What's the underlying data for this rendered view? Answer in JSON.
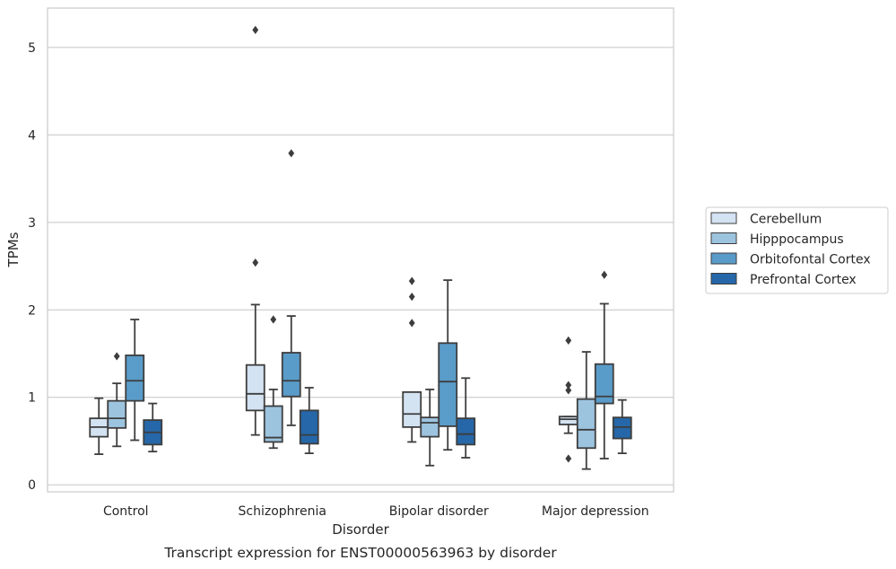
{
  "caption": "Transcript expression for ENST00000563963 by disorder",
  "chart_data": {
    "type": "boxplot",
    "xlabel": "Disorder",
    "ylabel": "TPMs",
    "ylim": [
      -0.08,
      5.45
    ],
    "yticks": [
      0,
      1,
      2,
      3,
      4,
      5
    ],
    "grid": "horizontal",
    "legend_position": "right",
    "categories": [
      "Control",
      "Schizophrenia",
      "Bipolar disorder",
      "Major depression"
    ],
    "series": [
      {
        "name": "Cerebellum",
        "color": "#d4e3f2",
        "boxes": [
          {
            "whislo": 0.35,
            "q1": 0.55,
            "med": 0.66,
            "q3": 0.76,
            "whishi": 0.99,
            "fliers": []
          },
          {
            "whislo": 0.57,
            "q1": 0.85,
            "med": 1.04,
            "q3": 1.37,
            "whishi": 2.06,
            "fliers": [
              2.54,
              5.2
            ]
          },
          {
            "whislo": 0.49,
            "q1": 0.66,
            "med": 0.81,
            "q3": 1.06,
            "whishi": 1.06,
            "fliers": [
              1.85,
              2.15,
              2.33
            ]
          },
          {
            "whislo": 0.59,
            "q1": 0.69,
            "med": 0.75,
            "q3": 0.78,
            "whishi": 0.78,
            "fliers": [
              0.3,
              1.08,
              1.14,
              1.65
            ]
          }
        ]
      },
      {
        "name": "Hipppocampus",
        "color": "#9dc4df",
        "boxes": [
          {
            "whislo": 0.44,
            "q1": 0.65,
            "med": 0.76,
            "q3": 0.96,
            "whishi": 1.16,
            "fliers": [
              1.47
            ]
          },
          {
            "whislo": 0.42,
            "q1": 0.49,
            "med": 0.54,
            "q3": 0.9,
            "whishi": 1.09,
            "fliers": [
              1.89
            ]
          },
          {
            "whislo": 0.22,
            "q1": 0.55,
            "med": 0.71,
            "q3": 0.77,
            "whishi": 1.09,
            "fliers": []
          },
          {
            "whislo": 0.18,
            "q1": 0.42,
            "med": 0.63,
            "q3": 0.98,
            "whishi": 1.52,
            "fliers": []
          }
        ]
      },
      {
        "name": "Orbitofontal Cortex",
        "color": "#5a9cc9",
        "boxes": [
          {
            "whislo": 0.51,
            "q1": 0.96,
            "med": 1.19,
            "q3": 1.48,
            "whishi": 1.89,
            "fliers": []
          },
          {
            "whislo": 0.68,
            "q1": 1.01,
            "med": 1.19,
            "q3": 1.51,
            "whishi": 1.93,
            "fliers": [
              3.79
            ]
          },
          {
            "whislo": 0.4,
            "q1": 0.67,
            "med": 1.18,
            "q3": 1.62,
            "whishi": 2.34,
            "fliers": []
          },
          {
            "whislo": 0.3,
            "q1": 0.93,
            "med": 1.01,
            "q3": 1.38,
            "whishi": 2.07,
            "fliers": [
              2.4
            ]
          }
        ]
      },
      {
        "name": "Prefrontal Cortex",
        "color": "#2567a8",
        "boxes": [
          {
            "whislo": 0.38,
            "q1": 0.46,
            "med": 0.6,
            "q3": 0.74,
            "whishi": 0.93,
            "fliers": []
          },
          {
            "whislo": 0.36,
            "q1": 0.47,
            "med": 0.57,
            "q3": 0.85,
            "whishi": 1.11,
            "fliers": []
          },
          {
            "whislo": 0.31,
            "q1": 0.46,
            "med": 0.58,
            "q3": 0.76,
            "whishi": 1.22,
            "fliers": []
          },
          {
            "whislo": 0.36,
            "q1": 0.53,
            "med": 0.66,
            "q3": 0.77,
            "whishi": 0.97,
            "fliers": []
          }
        ]
      }
    ]
  }
}
